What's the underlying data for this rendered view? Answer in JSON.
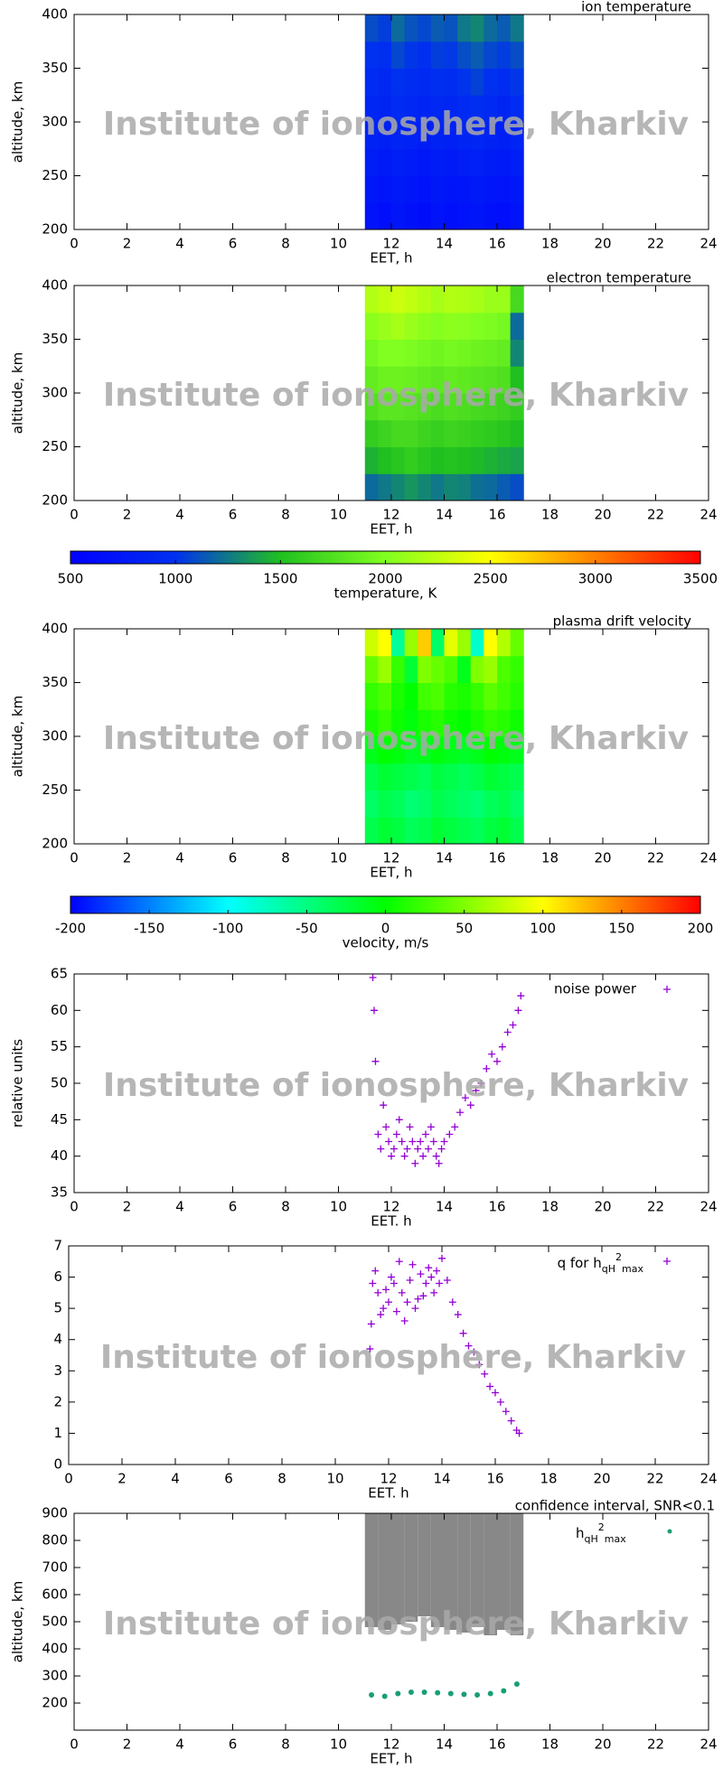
{
  "watermark": "Institute of ionosphere, Kharkiv",
  "chart_data": [
    {
      "type": "heatmap",
      "title": "ion temperature",
      "xlabel": "EET, h",
      "ylabel": "altitude, km",
      "xlim": [
        0,
        24
      ],
      "xticks": [
        0,
        2,
        4,
        6,
        8,
        10,
        12,
        14,
        16,
        18,
        20,
        22,
        24
      ],
      "ylim": [
        200,
        400
      ],
      "yticks": [
        200,
        250,
        300,
        350,
        400
      ],
      "x": [
        11.25,
        11.75,
        12.25,
        12.75,
        13.25,
        13.75,
        14.25,
        14.75,
        15.25,
        15.75,
        16.25,
        16.75
      ],
      "y": [
        212.5,
        237.5,
        262.5,
        287.5,
        312.5,
        337.5,
        362.5,
        387.5
      ],
      "z": [
        [
          700,
          650,
          720,
          680,
          640,
          700,
          660,
          690,
          720,
          680,
          650,
          700
        ],
        [
          750,
          700,
          760,
          720,
          690,
          740,
          710,
          730,
          760,
          720,
          700,
          740
        ],
        [
          800,
          760,
          820,
          780,
          740,
          790,
          770,
          800,
          830,
          790,
          760,
          810
        ],
        [
          860,
          820,
          880,
          850,
          800,
          860,
          830,
          870,
          900,
          860,
          820,
          880
        ],
        [
          900,
          880,
          950,
          910,
          870,
          920,
          900,
          940,
          980,
          930,
          890,
          950
        ],
        [
          950,
          920,
          1000,
          960,
          930,
          980,
          960,
          1010,
          1060,
          1000,
          960,
          1020
        ],
        [
          1000,
          980,
          1080,
          1020,
          990,
          1050,
          1030,
          1100,
          1150,
          1080,
          1040,
          1100
        ],
        [
          1100,
          1050,
          1200,
          1120,
          1080,
          1150,
          1120,
          1250,
          1300,
          1200,
          1150,
          1250
        ]
      ]
    },
    {
      "type": "heatmap",
      "title": "electron temperature",
      "xlabel": "EET, h",
      "ylabel": "altitude, km",
      "xlim": [
        0,
        24
      ],
      "xticks": [
        0,
        2,
        4,
        6,
        8,
        10,
        12,
        14,
        16,
        18,
        20,
        22,
        24
      ],
      "ylim": [
        200,
        400
      ],
      "yticks": [
        200,
        250,
        300,
        350,
        400
      ],
      "x": [
        11.25,
        11.75,
        12.25,
        12.75,
        13.25,
        13.75,
        14.25,
        14.75,
        15.25,
        15.75,
        16.25,
        16.75
      ],
      "y": [
        212.5,
        237.5,
        262.5,
        287.5,
        312.5,
        337.5,
        362.5,
        387.5
      ],
      "z": [
        [
          1200,
          1250,
          1300,
          1350,
          1300,
          1250,
          1300,
          1280,
          1220,
          1200,
          1150,
          1100
        ],
        [
          1450,
          1500,
          1550,
          1600,
          1550,
          1500,
          1520,
          1500,
          1480,
          1450,
          1420,
          1400
        ],
        [
          1600,
          1650,
          1700,
          1700,
          1650,
          1620,
          1650,
          1630,
          1600,
          1580,
          1550,
          1500
        ],
        [
          1750,
          1800,
          1800,
          1780,
          1750,
          1720,
          1750,
          1730,
          1700,
          1680,
          1650,
          1600
        ],
        [
          1850,
          1900,
          1900,
          1880,
          1850,
          1820,
          1850,
          1830,
          1800,
          1780,
          1750,
          1500
        ],
        [
          1950,
          2000,
          2000,
          1980,
          1950,
          1920,
          1950,
          1930,
          1900,
          1880,
          1850,
          1300
        ],
        [
          2050,
          2100,
          2150,
          2100,
          2050,
          2020,
          2050,
          2030,
          2000,
          1980,
          1950,
          1200
        ],
        [
          2200,
          2250,
          2300,
          2250,
          2200,
          2150,
          2200,
          2180,
          2150,
          2100,
          2100,
          1700
        ]
      ]
    },
    {
      "type": "colorbar",
      "label": "temperature, K",
      "zlim": [
        500,
        3500
      ],
      "ticks": [
        500,
        1000,
        1500,
        2000,
        2500,
        3000,
        3500
      ],
      "colors": [
        "#0000ff",
        "#0030f0",
        "#20c020",
        "#80ff20",
        "#ffff00",
        "#ff8000",
        "#ff0000"
      ]
    },
    {
      "type": "heatmap",
      "title": "plasma drift velocity",
      "xlabel": "EET, h",
      "ylabel": "altitude, km",
      "xlim": [
        0,
        24
      ],
      "xticks": [
        0,
        2,
        4,
        6,
        8,
        10,
        12,
        14,
        16,
        18,
        20,
        22,
        24
      ],
      "ylim": [
        200,
        400
      ],
      "yticks": [
        200,
        250,
        300,
        350,
        400
      ],
      "x": [
        11.25,
        11.75,
        12.25,
        12.75,
        13.25,
        13.75,
        14.25,
        14.75,
        15.25,
        15.75,
        16.25,
        16.75
      ],
      "y": [
        212.5,
        237.5,
        262.5,
        287.5,
        312.5,
        337.5,
        362.5,
        387.5
      ],
      "z": [
        [
          -30,
          -20,
          -25,
          -35,
          -30,
          -20,
          -25,
          -30,
          -35,
          -25,
          -20,
          -30
        ],
        [
          -40,
          -30,
          -35,
          -45,
          -40,
          -30,
          -35,
          -40,
          -45,
          -35,
          -30,
          -40
        ],
        [
          -30,
          -20,
          -25,
          -30,
          -35,
          -25,
          -30,
          -35,
          -30,
          -20,
          -25,
          -30
        ],
        [
          -10,
          0,
          -5,
          -15,
          -10,
          -5,
          -10,
          -15,
          -10,
          0,
          -5,
          -10
        ],
        [
          10,
          20,
          5,
          -5,
          10,
          15,
          5,
          0,
          10,
          20,
          15,
          5
        ],
        [
          20,
          30,
          10,
          0,
          25,
          30,
          15,
          10,
          20,
          35,
          25,
          15
        ],
        [
          40,
          60,
          20,
          -20,
          50,
          40,
          30,
          -10,
          50,
          60,
          30,
          20
        ],
        [
          80,
          100,
          -60,
          60,
          120,
          -40,
          90,
          60,
          -80,
          100,
          70,
          40
        ]
      ]
    },
    {
      "type": "colorbar",
      "label": "velocity, m/s",
      "zlim": [
        -200,
        200
      ],
      "ticks": [
        -200,
        -150,
        -100,
        -50,
        0,
        50,
        100,
        150,
        200
      ],
      "colors": [
        "#0000ff",
        "#00ffff",
        "#00ff00",
        "#ffff00",
        "#ff0000"
      ]
    },
    {
      "type": "scatter",
      "xlabel": "EET. h",
      "ylabel": "relative units",
      "xlim": [
        0,
        24
      ],
      "xticks": [
        0,
        2,
        4,
        6,
        8,
        10,
        12,
        14,
        16,
        18,
        20,
        22,
        24
      ],
      "ylim": [
        35,
        65
      ],
      "yticks": [
        35,
        40,
        45,
        50,
        55,
        60,
        65
      ],
      "series": [
        {
          "name": "noise power",
          "color": "#9400d3",
          "x": [
            11.3,
            11.35,
            11.4,
            11.5,
            11.6,
            11.7,
            11.8,
            11.9,
            12.0,
            12.1,
            12.2,
            12.3,
            12.4,
            12.5,
            12.6,
            12.7,
            12.8,
            12.9,
            13.0,
            13.1,
            13.2,
            13.3,
            13.4,
            13.5,
            13.6,
            13.7,
            13.8,
            13.9,
            14.0,
            14.2,
            14.4,
            14.6,
            14.8,
            15.0,
            15.2,
            15.4,
            15.6,
            15.8,
            16.0,
            16.2,
            16.4,
            16.6,
            16.8,
            16.9
          ],
          "values": [
            64.5,
            60,
            53,
            43,
            41,
            47,
            44,
            42,
            40,
            41,
            43,
            45,
            42,
            40,
            41,
            44,
            42,
            39,
            41,
            42,
            40,
            43,
            41,
            44,
            42,
            40,
            39,
            41,
            42,
            43,
            44,
            46,
            48,
            47,
            49,
            50,
            52,
            54,
            53,
            55,
            57,
            58,
            60,
            62
          ]
        }
      ]
    },
    {
      "type": "scatter",
      "xlabel": "EET. h",
      "xlim": [
        0,
        24
      ],
      "xticks": [
        0,
        2,
        4,
        6,
        8,
        10,
        12,
        14,
        16,
        18,
        20,
        22,
        24
      ],
      "ylim": [
        0,
        7
      ],
      "yticks": [
        0,
        1,
        2,
        3,
        4,
        5,
        6,
        7
      ],
      "series": [
        {
          "legend_parts": [
            "q for h",
            "qH",
            "2",
            "max"
          ],
          "color": "#9400d3",
          "x": [
            11.3,
            11.35,
            11.4,
            11.5,
            11.6,
            11.7,
            11.8,
            11.9,
            12.0,
            12.1,
            12.2,
            12.3,
            12.4,
            12.5,
            12.6,
            12.7,
            12.8,
            12.9,
            13.0,
            13.1,
            13.2,
            13.3,
            13.4,
            13.5,
            13.6,
            13.7,
            13.8,
            13.9,
            14.0,
            14.2,
            14.4,
            14.6,
            14.8,
            15.0,
            15.2,
            15.4,
            15.6,
            15.8,
            16.0,
            16.2,
            16.4,
            16.6,
            16.8,
            16.9
          ],
          "values": [
            3.7,
            4.5,
            5.8,
            6.2,
            5.5,
            4.8,
            5.0,
            5.6,
            5.2,
            6.0,
            5.8,
            4.9,
            6.5,
            5.5,
            4.6,
            5.2,
            5.9,
            6.4,
            5.0,
            5.3,
            6.1,
            5.4,
            5.8,
            6.3,
            6.0,
            5.5,
            6.2,
            5.8,
            6.6,
            5.9,
            5.2,
            4.8,
            4.2,
            3.8,
            3.6,
            3.2,
            2.9,
            2.5,
            2.3,
            2.0,
            1.7,
            1.4,
            1.1,
            1.0
          ]
        }
      ]
    },
    {
      "type": "range",
      "title": "confidence interval, SNR<0.1",
      "xlabel": "EET, h",
      "ylabel": "altitude, km",
      "xlim": [
        0,
        24
      ],
      "xticks": [
        0,
        2,
        4,
        6,
        8,
        10,
        12,
        14,
        16,
        18,
        20,
        22,
        24
      ],
      "ylim": [
        100,
        900
      ],
      "yticks": [
        200,
        300,
        400,
        500,
        600,
        700,
        800,
        900
      ],
      "x": [
        11.25,
        11.75,
        12.25,
        12.75,
        13.25,
        13.75,
        14.25,
        14.75,
        15.25,
        15.75,
        16.25,
        16.75
      ],
      "low": [
        480,
        470,
        490,
        500,
        520,
        480,
        470,
        460,
        480,
        450,
        470,
        450
      ],
      "high": [
        900,
        900,
        900,
        900,
        900,
        900,
        900,
        900,
        900,
        900,
        900,
        900
      ],
      "series": [
        {
          "legend_parts": [
            "h",
            "qH",
            "2",
            "max"
          ],
          "color": "#1a9e77",
          "values": [
            230,
            225,
            235,
            240,
            240,
            238,
            235,
            232,
            230,
            235,
            245,
            270
          ]
        }
      ]
    }
  ]
}
